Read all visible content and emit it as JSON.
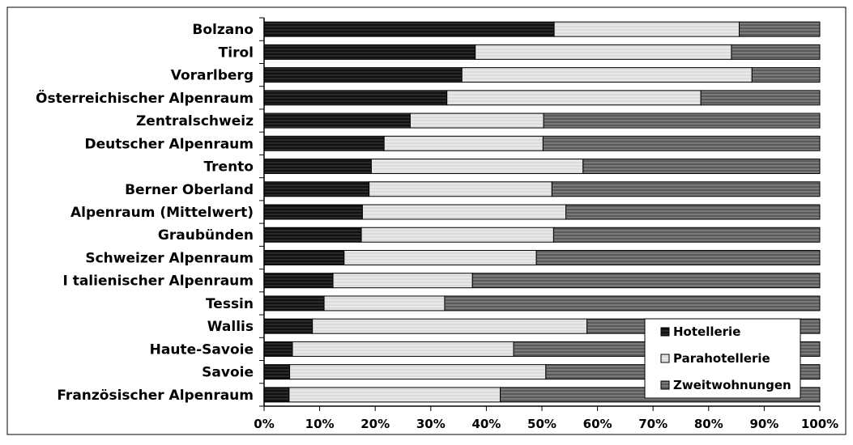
{
  "chart_data": {
    "type": "bar",
    "orientation": "horizontal",
    "stacked": "percent",
    "title": "",
    "xlabel": "",
    "ylabel": "",
    "xlim": [
      0,
      100
    ],
    "x_ticks": [
      "0%",
      "10%",
      "20%",
      "30%",
      "40%",
      "50%",
      "60%",
      "70%",
      "80%",
      "90%",
      "100%"
    ],
    "grid": false,
    "legend_position": "bottom-right",
    "categories": [
      "Bolzano",
      "Tirol",
      "Vorarlberg",
      "Österreichischer Alpenraum",
      "Zentralschweiz",
      "Deutscher Alpenraum",
      "Trento",
      "Berner Oberland",
      "Alpenraum (Mittelwert)",
      "Graubünden",
      "Schweizer Alpenraum",
      "I talienischer Alpenraum",
      "Tessin",
      "Wallis",
      "Haute-Savoie",
      "Savoie",
      "Französischer Alpenraum"
    ],
    "series": [
      {
        "name": "Hotellerie",
        "color": "#1a1a1a",
        "values": [
          52.2,
          38.0,
          35.6,
          32.9,
          26.3,
          21.6,
          19.3,
          18.9,
          17.7,
          17.5,
          14.4,
          12.4,
          10.8,
          8.7,
          5.1,
          4.6,
          4.5
        ]
      },
      {
        "name": "Parahotellerie",
        "color": "#e0e0e0",
        "values": [
          33.3,
          46.1,
          52.2,
          45.7,
          24.0,
          28.6,
          38.1,
          32.9,
          36.6,
          34.6,
          34.6,
          25.1,
          21.7,
          49.4,
          39.8,
          46.1,
          38.0
        ]
      },
      {
        "name": "Zweitwohnungen",
        "color": "#6e6e6e",
        "values": [
          14.5,
          15.9,
          12.2,
          21.4,
          49.7,
          49.8,
          42.6,
          48.2,
          45.7,
          47.9,
          51.0,
          62.5,
          67.5,
          41.9,
          55.1,
          49.3,
          57.5
        ]
      }
    ]
  }
}
